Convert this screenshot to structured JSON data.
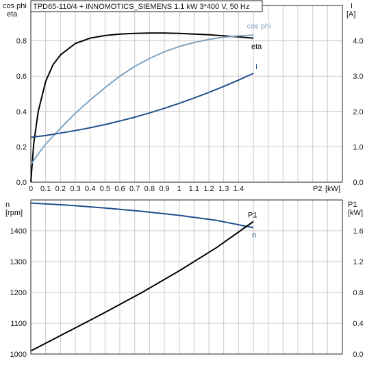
{
  "colors": {
    "eta": "#000000",
    "cos_phi": "#7ea2c0",
    "current": "#1f4f8c",
    "speed": "#1f4f8c",
    "p1": "#000000",
    "grid": "#c8c8c8"
  },
  "chart_data": [
    {
      "type": "line",
      "title": "TPD65-110/4 + INNOMOTICS_SIEMENS   1.1 kW   3*400 V, 50 Hz",
      "xlabel": "P2 [kW]",
      "x_unit_label": "P2",
      "x_unit": "[kW]",
      "xlim": [
        0,
        2.1
      ],
      "x_ticks": [
        "0",
        "0.1",
        "0.2",
        "0.3",
        "0.4",
        "0.5",
        "0.6",
        "0.7",
        "0.8",
        "0.9",
        "1",
        "1.1",
        "1.2",
        "1.3",
        "1.4"
      ],
      "ylabel_left_line1": "cos phi",
      "ylabel_left_line2": "eta",
      "ylim_left": [
        0,
        1.0
      ],
      "y_ticks_left": [
        "0.0",
        "0.2",
        "0.4",
        "0.6",
        "0.8"
      ],
      "ylabel_right_line1": "I",
      "ylabel_right_line2": "[A]",
      "ylim_right": [
        0,
        5.0
      ],
      "y_ticks_right": [
        "0.0",
        "1.0",
        "2.0",
        "3.0",
        "4.0"
      ],
      "grid": true,
      "series": [
        {
          "name": "eta",
          "axis": "left",
          "x": [
            0,
            0.02,
            0.05,
            0.1,
            0.15,
            0.2,
            0.3,
            0.4,
            0.5,
            0.6,
            0.7,
            0.8,
            0.9,
            1.0,
            1.1,
            1.2,
            1.3,
            1.4,
            1.5
          ],
          "y": [
            0,
            0.22,
            0.4,
            0.57,
            0.665,
            0.72,
            0.785,
            0.815,
            0.83,
            0.838,
            0.842,
            0.844,
            0.844,
            0.842,
            0.838,
            0.834,
            0.828,
            0.822,
            0.815
          ]
        },
        {
          "name": "cos phi",
          "axis": "left",
          "x": [
            0,
            0.05,
            0.1,
            0.2,
            0.3,
            0.4,
            0.5,
            0.6,
            0.7,
            0.8,
            0.9,
            1.0,
            1.1,
            1.2,
            1.3,
            1.4,
            1.5
          ],
          "y": [
            0.1,
            0.16,
            0.215,
            0.305,
            0.39,
            0.465,
            0.535,
            0.6,
            0.655,
            0.7,
            0.738,
            0.768,
            0.79,
            0.808,
            0.82,
            0.828,
            0.832
          ]
        },
        {
          "name": "I",
          "axis": "right",
          "x": [
            0,
            0.1,
            0.2,
            0.3,
            0.4,
            0.5,
            0.6,
            0.7,
            0.8,
            0.9,
            1.0,
            1.1,
            1.2,
            1.3,
            1.4,
            1.5
          ],
          "y": [
            1.27,
            1.32,
            1.39,
            1.46,
            1.54,
            1.63,
            1.73,
            1.84,
            1.96,
            2.09,
            2.23,
            2.38,
            2.54,
            2.71,
            2.89,
            3.08
          ]
        }
      ]
    },
    {
      "type": "line",
      "xlim": [
        0,
        2.1
      ],
      "ylabel_left_line1": "n",
      "ylabel_left_line2": "[rpm]",
      "ylim_left": [
        1000,
        1500
      ],
      "y_ticks_left": [
        "1000",
        "1100",
        "1200",
        "1300",
        "1400"
      ],
      "ylabel_right_line1": "P1",
      "ylabel_right_line2": "[kW]",
      "ylim_right": [
        0,
        2.0
      ],
      "y_ticks_right": [
        "0.0",
        "0.4",
        "0.8",
        "1.2",
        "1.6"
      ],
      "grid": true,
      "series": [
        {
          "name": "n",
          "axis": "left",
          "x": [
            0,
            0.25,
            0.5,
            0.75,
            1.0,
            1.25,
            1.5
          ],
          "y": [
            1490,
            1483,
            1474,
            1463,
            1450,
            1434,
            1410
          ]
        },
        {
          "name": "P1",
          "axis": "right",
          "x": [
            0,
            0.25,
            0.5,
            0.75,
            1.0,
            1.25,
            1.5
          ],
          "y": [
            0.04,
            0.29,
            0.54,
            0.8,
            1.08,
            1.38,
            1.72
          ]
        }
      ]
    }
  ]
}
